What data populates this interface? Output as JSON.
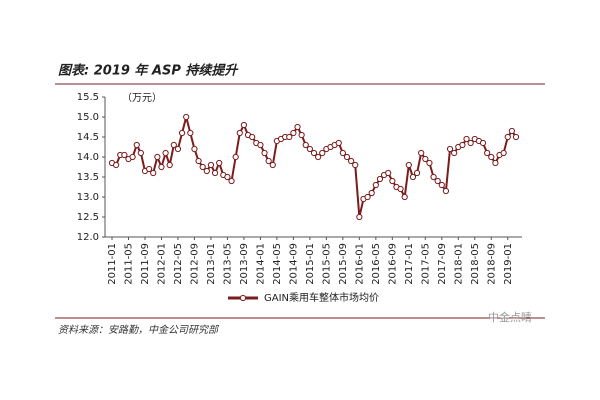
{
  "chart_data": {
    "type": "line",
    "title": "图表: 2019 年 ASP 持续提升",
    "unit_label": "（万元）",
    "source": "资料来源：安路勤，中金公司研究部",
    "watermark": "中金点睛",
    "categories": [
      "2011-01",
      null,
      null,
      null,
      "2011-05",
      null,
      null,
      null,
      "2011-09",
      null,
      null,
      null,
      "2012-01",
      null,
      null,
      null,
      "2012-05",
      null,
      null,
      null,
      "2012-09",
      null,
      null,
      null,
      "2013-01",
      null,
      null,
      null,
      "2013-05",
      null,
      null,
      null,
      "2013-09",
      null,
      null,
      null,
      "2014-01",
      null,
      null,
      null,
      "2014-05",
      null,
      null,
      null,
      "2014-09",
      null,
      null,
      null,
      "2015-01",
      null,
      null,
      null,
      "2015-05",
      null,
      null,
      null,
      "2015-09",
      null,
      null,
      null,
      "2016-01",
      null,
      null,
      null,
      "2016-05",
      null,
      null,
      null,
      "2016-09",
      null,
      null,
      null,
      "2017-01",
      null,
      null,
      null,
      "2017-05",
      null,
      null,
      null,
      "2017-09",
      null,
      null,
      null,
      "2018-01",
      null,
      null,
      null,
      "2018-05",
      null,
      null,
      null,
      "2018-09",
      null,
      null,
      null,
      "2019-01",
      null,
      null
    ],
    "series": [
      {
        "name": "GAIN乘用车整体市场均价",
        "color": "#7b1c1c",
        "values": [
          13.85,
          13.8,
          14.05,
          14.05,
          13.95,
          14.0,
          14.3,
          14.1,
          13.65,
          13.7,
          13.6,
          14.0,
          13.75,
          14.1,
          13.8,
          14.3,
          14.2,
          14.6,
          15.0,
          14.6,
          14.2,
          13.9,
          13.75,
          13.65,
          13.8,
          13.6,
          13.85,
          13.55,
          13.5,
          13.4,
          14.0,
          14.6,
          14.8,
          14.55,
          14.5,
          14.35,
          14.3,
          14.1,
          13.9,
          13.8,
          14.4,
          14.45,
          14.5,
          14.5,
          14.6,
          14.75,
          14.55,
          14.3,
          14.2,
          14.1,
          14.0,
          14.1,
          14.2,
          14.25,
          14.3,
          14.35,
          14.1,
          14.0,
          13.9,
          13.8,
          12.5,
          12.95,
          13.0,
          13.1,
          13.3,
          13.45,
          13.55,
          13.6,
          13.4,
          13.25,
          13.2,
          13.0,
          13.8,
          13.5,
          13.6,
          14.1,
          13.95,
          13.85,
          13.5,
          13.4,
          13.3,
          13.15,
          14.2,
          14.1,
          14.25,
          14.3,
          14.45,
          14.35,
          14.45,
          14.4,
          14.35,
          14.1,
          14.0,
          13.85,
          14.05,
          14.1,
          14.5,
          14.65,
          14.5
        ]
      }
    ],
    "ylim": [
      12,
      15.5
    ],
    "yticks": [
      {
        "value": 12,
        "label": "12.0"
      },
      {
        "value": 12.5,
        "label": "12.5"
      },
      {
        "value": 13,
        "label": "13.0"
      },
      {
        "value": 13.5,
        "label": "13.5"
      },
      {
        "value": 14,
        "label": "14.0"
      },
      {
        "value": 14.5,
        "label": "14.5"
      },
      {
        "value": 15,
        "label": "15.0"
      },
      {
        "value": 15.5,
        "label": "15.5"
      }
    ]
  }
}
